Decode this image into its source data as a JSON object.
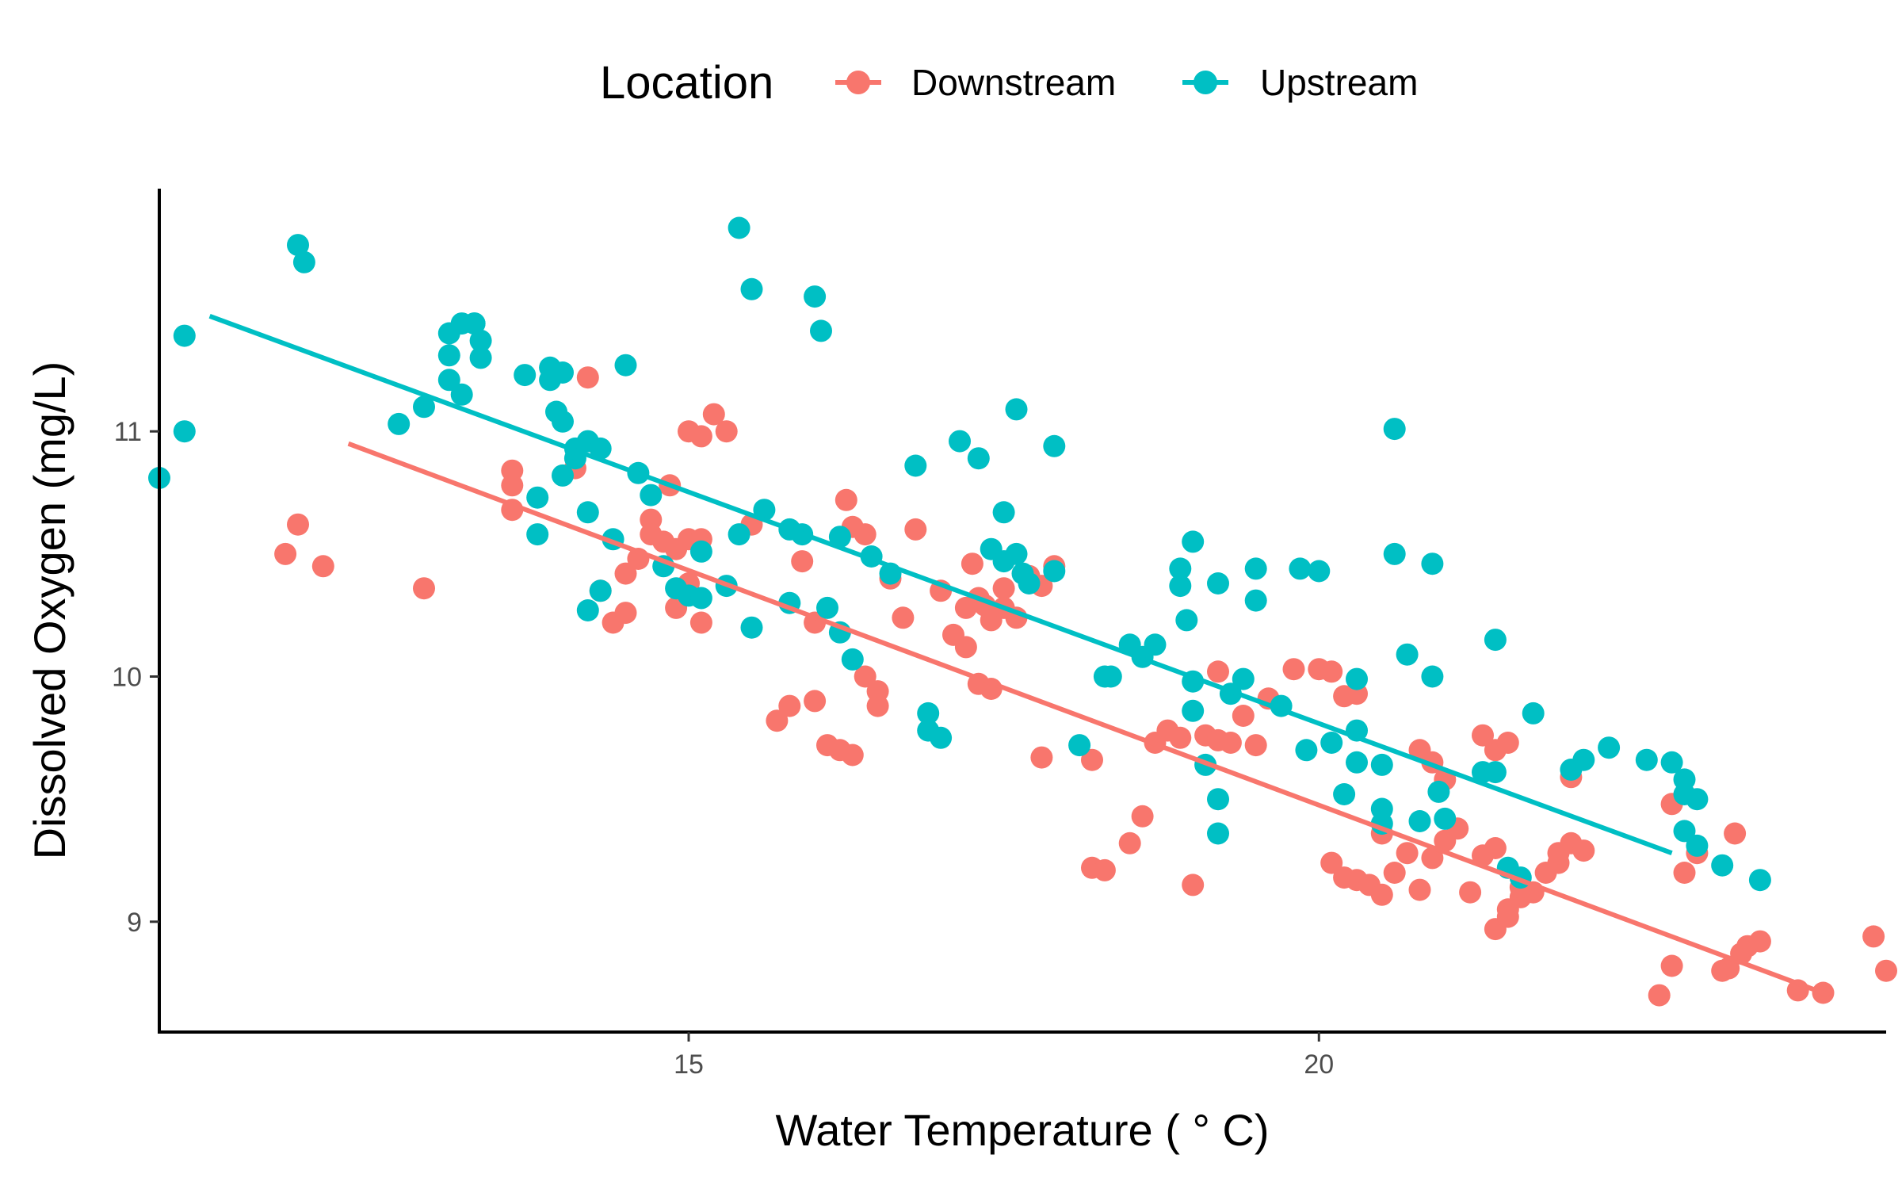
{
  "chart_data": {
    "type": "scatter",
    "xlabel": "Water Temperature ( ° C)",
    "ylabel": "Dissolved Oxygen (mg/L)",
    "xlim": [
      10.8,
      24.5
    ],
    "ylim": [
      8.55,
      11.99
    ],
    "x_ticks": [
      15,
      20
    ],
    "y_ticks": [
      9,
      10,
      11
    ],
    "grid": false,
    "legend": {
      "title": "Location",
      "position": "top",
      "entries": [
        "Downstream",
        "Upstream"
      ]
    },
    "series": [
      {
        "name": "Downstream",
        "color": "#F8766D",
        "trend": {
          "x": [
            12.3,
            24.05
          ],
          "y": [
            10.95,
            8.7
          ]
        },
        "points": [
          [
            11.8,
            10.5
          ],
          [
            11.9,
            10.62
          ],
          [
            12.1,
            10.45
          ],
          [
            12.9,
            10.36
          ],
          [
            13.6,
            10.84
          ],
          [
            13.6,
            10.78
          ],
          [
            13.6,
            10.68
          ],
          [
            14.2,
            11.22
          ],
          [
            14.1,
            10.85
          ],
          [
            14.3,
            10.35
          ],
          [
            14.4,
            10.22
          ],
          [
            14.5,
            10.26
          ],
          [
            14.5,
            10.42
          ],
          [
            14.6,
            10.48
          ],
          [
            14.7,
            10.64
          ],
          [
            14.7,
            10.58
          ],
          [
            14.8,
            10.55
          ],
          [
            14.85,
            10.78
          ],
          [
            14.9,
            10.52
          ],
          [
            15.0,
            10.38
          ],
          [
            15.1,
            10.22
          ],
          [
            14.9,
            10.28
          ],
          [
            15.0,
            11.0
          ],
          [
            15.1,
            10.98
          ],
          [
            15.2,
            11.07
          ],
          [
            15.3,
            11.0
          ],
          [
            15.0,
            10.56
          ],
          [
            15.1,
            10.56
          ],
          [
            15.5,
            10.62
          ],
          [
            15.7,
            9.82
          ],
          [
            15.8,
            9.88
          ],
          [
            15.9,
            10.47
          ],
          [
            16.0,
            10.22
          ],
          [
            16.0,
            9.9
          ],
          [
            16.1,
            9.72
          ],
          [
            16.2,
            9.7
          ],
          [
            16.25,
            10.72
          ],
          [
            16.3,
            10.61
          ],
          [
            16.3,
            9.68
          ],
          [
            16.4,
            10.58
          ],
          [
            16.4,
            10.0
          ],
          [
            16.5,
            9.88
          ],
          [
            16.5,
            9.94
          ],
          [
            16.6,
            10.4
          ],
          [
            16.7,
            10.24
          ],
          [
            16.8,
            10.6
          ],
          [
            17.0,
            10.35
          ],
          [
            17.1,
            10.17
          ],
          [
            17.2,
            10.12
          ],
          [
            17.2,
            10.28
          ],
          [
            17.25,
            10.46
          ],
          [
            17.3,
            10.32
          ],
          [
            17.35,
            10.29
          ],
          [
            17.3,
            9.97
          ],
          [
            17.4,
            9.95
          ],
          [
            17.4,
            10.23
          ],
          [
            17.5,
            10.28
          ],
          [
            17.5,
            10.36
          ],
          [
            17.6,
            10.24
          ],
          [
            17.7,
            10.41
          ],
          [
            17.8,
            10.37
          ],
          [
            17.9,
            10.45
          ],
          [
            17.8,
            9.67
          ],
          [
            18.2,
            9.66
          ],
          [
            18.2,
            9.22
          ],
          [
            18.3,
            9.21
          ],
          [
            18.5,
            9.32
          ],
          [
            18.6,
            9.43
          ],
          [
            18.7,
            9.73
          ],
          [
            18.8,
            9.78
          ],
          [
            18.9,
            9.75
          ],
          [
            19.0,
            9.15
          ],
          [
            19.1,
            9.76
          ],
          [
            19.2,
            9.74
          ],
          [
            19.3,
            9.73
          ],
          [
            19.4,
            9.84
          ],
          [
            19.5,
            9.72
          ],
          [
            19.6,
            9.91
          ],
          [
            19.2,
            10.02
          ],
          [
            19.8,
            10.03
          ],
          [
            20.0,
            10.03
          ],
          [
            20.1,
            10.02
          ],
          [
            20.2,
            9.92
          ],
          [
            20.3,
            9.93
          ],
          [
            20.1,
            9.24
          ],
          [
            20.2,
            9.18
          ],
          [
            20.3,
            9.17
          ],
          [
            20.4,
            9.15
          ],
          [
            20.5,
            9.11
          ],
          [
            20.5,
            9.36
          ],
          [
            20.6,
            9.2
          ],
          [
            20.7,
            9.28
          ],
          [
            20.8,
            9.13
          ],
          [
            20.8,
            9.7
          ],
          [
            20.9,
            9.65
          ],
          [
            21.0,
            9.58
          ],
          [
            20.9,
            9.26
          ],
          [
            21.0,
            9.33
          ],
          [
            21.1,
            9.38
          ],
          [
            21.2,
            9.12
          ],
          [
            21.3,
            9.76
          ],
          [
            21.4,
            9.7
          ],
          [
            21.5,
            9.73
          ],
          [
            21.3,
            9.27
          ],
          [
            21.4,
            9.3
          ],
          [
            21.5,
            9.05
          ],
          [
            21.6,
            9.1
          ],
          [
            21.7,
            9.12
          ],
          [
            21.6,
            9.14
          ],
          [
            21.4,
            8.97
          ],
          [
            21.5,
            9.02
          ],
          [
            21.8,
            9.2
          ],
          [
            21.9,
            9.24
          ],
          [
            22.0,
            9.32
          ],
          [
            22.1,
            9.29
          ],
          [
            21.9,
            9.28
          ],
          [
            22.0,
            9.59
          ],
          [
            22.8,
            9.48
          ],
          [
            22.7,
            8.7
          ],
          [
            22.8,
            8.82
          ],
          [
            22.9,
            9.2
          ],
          [
            23.0,
            9.28
          ],
          [
            23.2,
            8.8
          ],
          [
            23.25,
            8.81
          ],
          [
            23.3,
            9.36
          ],
          [
            23.35,
            8.87
          ],
          [
            23.4,
            8.9
          ],
          [
            23.5,
            8.92
          ],
          [
            23.8,
            8.72
          ],
          [
            24.0,
            8.71
          ],
          [
            24.4,
            8.94
          ],
          [
            24.5,
            8.8
          ]
        ]
      },
      {
        "name": "Upstream",
        "color": "#00BFC4",
        "trend": {
          "x": [
            11.2,
            22.8
          ],
          "y": [
            11.47,
            9.28
          ]
        },
        "points": [
          [
            10.8,
            10.81
          ],
          [
            11.0,
            11.39
          ],
          [
            11.0,
            11.0
          ],
          [
            11.9,
            11.76
          ],
          [
            11.95,
            11.69
          ],
          [
            12.7,
            11.03
          ],
          [
            12.9,
            11.1
          ],
          [
            13.1,
            11.4
          ],
          [
            13.1,
            11.31
          ],
          [
            13.1,
            11.21
          ],
          [
            13.2,
            11.44
          ],
          [
            13.3,
            11.44
          ],
          [
            13.2,
            11.15
          ],
          [
            13.35,
            11.37
          ],
          [
            13.35,
            11.3
          ],
          [
            13.3,
            11.44
          ],
          [
            13.7,
            11.23
          ],
          [
            13.8,
            10.73
          ],
          [
            13.8,
            10.58
          ],
          [
            13.9,
            11.26
          ],
          [
            13.9,
            11.21
          ],
          [
            14.0,
            11.24
          ],
          [
            13.95,
            11.08
          ],
          [
            14.0,
            11.04
          ],
          [
            14.0,
            10.82
          ],
          [
            14.1,
            10.89
          ],
          [
            14.1,
            10.93
          ],
          [
            14.2,
            10.96
          ],
          [
            14.3,
            10.93
          ],
          [
            14.2,
            10.67
          ],
          [
            14.2,
            10.27
          ],
          [
            14.3,
            10.35
          ],
          [
            14.4,
            10.56
          ],
          [
            14.5,
            11.27
          ],
          [
            14.6,
            10.83
          ],
          [
            14.7,
            10.74
          ],
          [
            14.8,
            10.45
          ],
          [
            14.9,
            10.36
          ],
          [
            15.0,
            10.33
          ],
          [
            15.1,
            10.32
          ],
          [
            15.1,
            10.51
          ],
          [
            15.3,
            10.37
          ],
          [
            15.4,
            10.58
          ],
          [
            15.4,
            11.83
          ],
          [
            15.5,
            11.58
          ],
          [
            15.5,
            10.2
          ],
          [
            15.6,
            10.68
          ],
          [
            15.8,
            10.6
          ],
          [
            15.8,
            10.3
          ],
          [
            15.9,
            10.58
          ],
          [
            16.0,
            11.55
          ],
          [
            16.05,
            11.41
          ],
          [
            16.1,
            10.28
          ],
          [
            16.2,
            10.18
          ],
          [
            16.2,
            10.57
          ],
          [
            16.3,
            10.07
          ],
          [
            16.45,
            10.49
          ],
          [
            16.6,
            10.42
          ],
          [
            16.8,
            10.86
          ],
          [
            16.9,
            9.78
          ],
          [
            16.9,
            9.85
          ],
          [
            17.0,
            9.75
          ],
          [
            17.15,
            10.96
          ],
          [
            17.3,
            10.89
          ],
          [
            17.4,
            10.52
          ],
          [
            17.5,
            10.47
          ],
          [
            17.5,
            10.67
          ],
          [
            17.6,
            11.09
          ],
          [
            17.6,
            10.5
          ],
          [
            17.65,
            10.42
          ],
          [
            17.7,
            10.38
          ],
          [
            17.9,
            10.94
          ],
          [
            17.9,
            10.43
          ],
          [
            18.1,
            9.72
          ],
          [
            18.3,
            10.0
          ],
          [
            18.35,
            10.0
          ],
          [
            18.5,
            10.13
          ],
          [
            18.6,
            10.08
          ],
          [
            18.7,
            10.13
          ],
          [
            18.9,
            10.44
          ],
          [
            18.9,
            10.37
          ],
          [
            19.0,
            10.55
          ],
          [
            18.95,
            10.23
          ],
          [
            19.0,
            9.98
          ],
          [
            19.0,
            9.86
          ],
          [
            19.2,
            10.38
          ],
          [
            19.1,
            9.64
          ],
          [
            19.2,
            9.5
          ],
          [
            19.2,
            9.36
          ],
          [
            19.3,
            9.93
          ],
          [
            19.4,
            9.99
          ],
          [
            19.5,
            10.44
          ],
          [
            19.5,
            10.31
          ],
          [
            19.7,
            9.88
          ],
          [
            19.85,
            10.44
          ],
          [
            19.9,
            9.7
          ],
          [
            20.0,
            10.43
          ],
          [
            20.1,
            9.73
          ],
          [
            20.2,
            9.52
          ],
          [
            20.3,
            9.78
          ],
          [
            20.3,
            9.99
          ],
          [
            20.3,
            9.65
          ],
          [
            20.5,
            9.64
          ],
          [
            20.5,
            9.46
          ],
          [
            20.5,
            9.4
          ],
          [
            20.6,
            11.01
          ],
          [
            20.6,
            10.5
          ],
          [
            20.7,
            10.09
          ],
          [
            20.8,
            9.41
          ],
          [
            20.9,
            10.46
          ],
          [
            20.9,
            10.0
          ],
          [
            20.95,
            9.53
          ],
          [
            21.0,
            9.42
          ],
          [
            21.3,
            9.61
          ],
          [
            21.4,
            10.15
          ],
          [
            21.4,
            9.61
          ],
          [
            21.5,
            9.22
          ],
          [
            21.6,
            9.18
          ],
          [
            21.7,
            9.85
          ],
          [
            22.0,
            9.62
          ],
          [
            22.1,
            9.66
          ],
          [
            22.3,
            9.71
          ],
          [
            22.6,
            9.66
          ],
          [
            22.8,
            9.65
          ],
          [
            22.9,
            9.58
          ],
          [
            22.9,
            9.52
          ],
          [
            23.0,
            9.5
          ],
          [
            22.9,
            9.37
          ],
          [
            23.0,
            9.31
          ],
          [
            23.2,
            9.23
          ],
          [
            23.5,
            9.17
          ]
        ]
      }
    ]
  }
}
